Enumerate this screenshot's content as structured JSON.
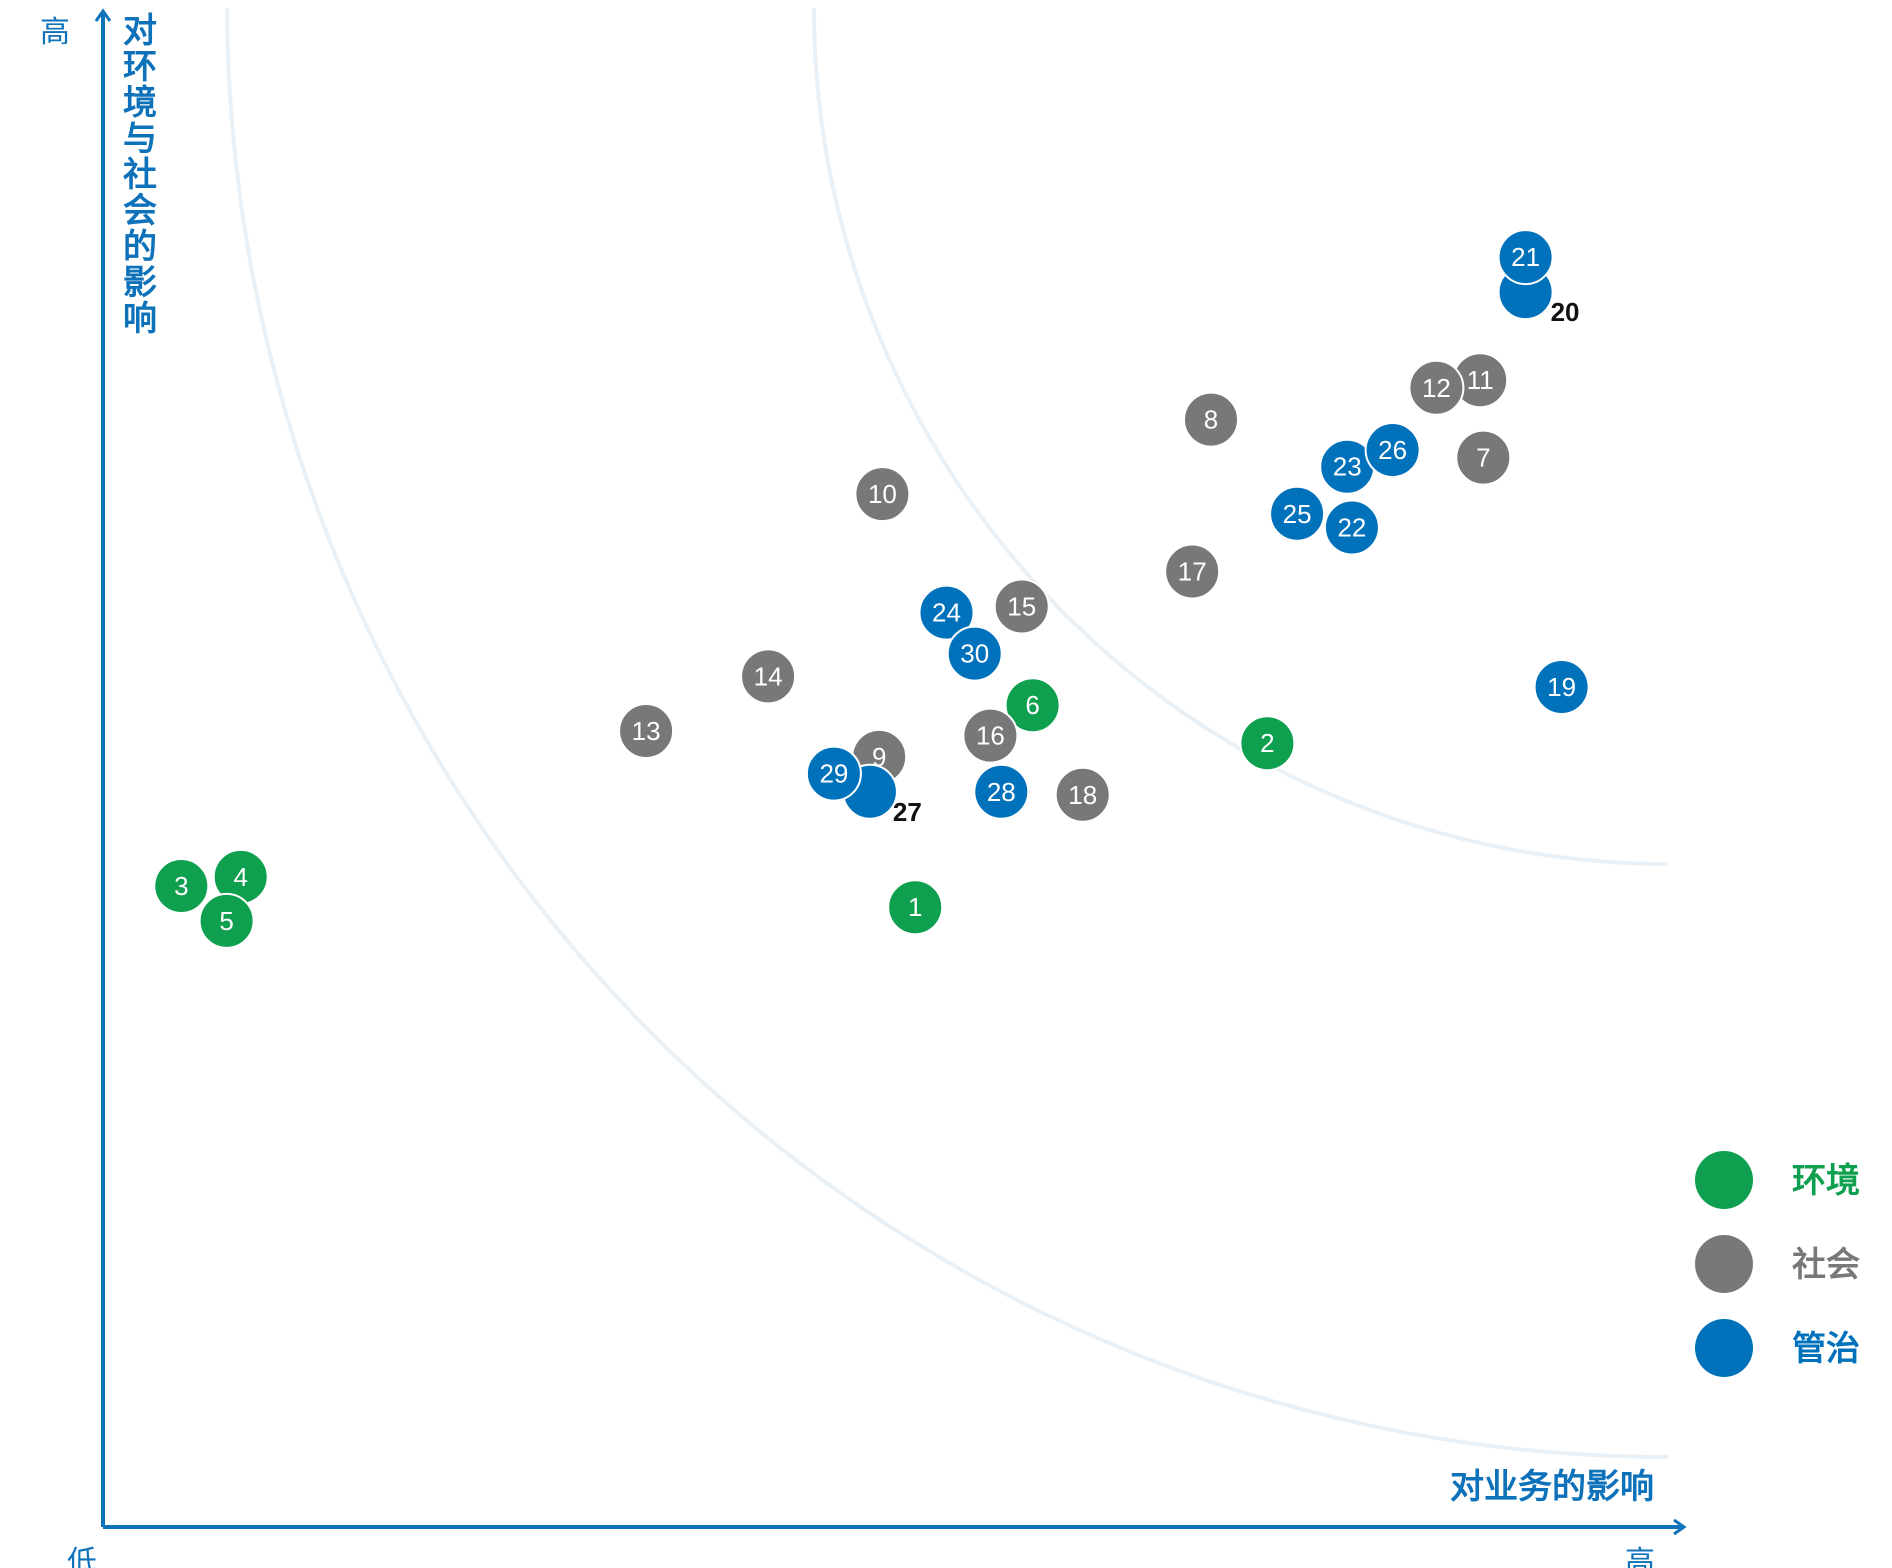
{
  "chart_data": {
    "type": "scatter",
    "xlabel": "对业务的影响",
    "ylabel": "对环境与社会的影响",
    "x_low_label": "低",
    "x_high_label": "高",
    "y_high_label": "高",
    "xlim": [
      0,
      100
    ],
    "ylim": [
      0,
      100
    ],
    "grid": false,
    "legend_position": "bottom-right",
    "series": [
      {
        "name": "环境",
        "color": "#0e9f4f",
        "points": [
          {
            "id": "1",
            "x": 51.9,
            "y": 40.8
          },
          {
            "id": "2",
            "x": 74.4,
            "y": 51.6
          },
          {
            "id": "3",
            "x": 5.0,
            "y": 42.2
          },
          {
            "id": "4",
            "x": 8.8,
            "y": 42.8
          },
          {
            "id": "5",
            "x": 7.9,
            "y": 39.9
          },
          {
            "id": "6",
            "x": 59.4,
            "y": 54.1
          }
        ]
      },
      {
        "name": "社会",
        "color": "#787878",
        "points": [
          {
            "id": "7",
            "x": 88.2,
            "y": 70.4
          },
          {
            "id": "8",
            "x": 70.8,
            "y": 72.9
          },
          {
            "id": "9",
            "x": 49.6,
            "y": 50.7
          },
          {
            "id": "10",
            "x": 49.8,
            "y": 68.0
          },
          {
            "id": "11",
            "x": 88.0,
            "y": 75.5
          },
          {
            "id": "12",
            "x": 85.2,
            "y": 75.0
          },
          {
            "id": "13",
            "x": 34.7,
            "y": 52.4
          },
          {
            "id": "14",
            "x": 42.5,
            "y": 56.0
          },
          {
            "id": "15",
            "x": 58.7,
            "y": 60.6
          },
          {
            "id": "16",
            "x": 56.7,
            "y": 52.1
          },
          {
            "id": "17",
            "x": 69.6,
            "y": 62.9
          },
          {
            "id": "18",
            "x": 62.6,
            "y": 48.2
          }
        ]
      },
      {
        "name": "管治",
        "color": "#0071bb",
        "points": [
          {
            "id": "19",
            "x": 93.2,
            "y": 55.3
          },
          {
            "id": "20",
            "x": 90.9,
            "y": 81.3
          },
          {
            "id": "21",
            "x": 90.9,
            "y": 83.6
          },
          {
            "id": "22",
            "x": 79.8,
            "y": 65.8
          },
          {
            "id": "23",
            "x": 79.5,
            "y": 69.8
          },
          {
            "id": "24",
            "x": 53.9,
            "y": 60.2
          },
          {
            "id": "25",
            "x": 76.3,
            "y": 66.7
          },
          {
            "id": "26",
            "x": 82.4,
            "y": 70.9
          },
          {
            "id": "27",
            "x": 49.0,
            "y": 48.4
          },
          {
            "id": "28",
            "x": 57.4,
            "y": 48.4
          },
          {
            "id": "29",
            "x": 46.7,
            "y": 49.6
          },
          {
            "id": "30",
            "x": 55.7,
            "y": 57.5
          }
        ]
      }
    ]
  }
}
